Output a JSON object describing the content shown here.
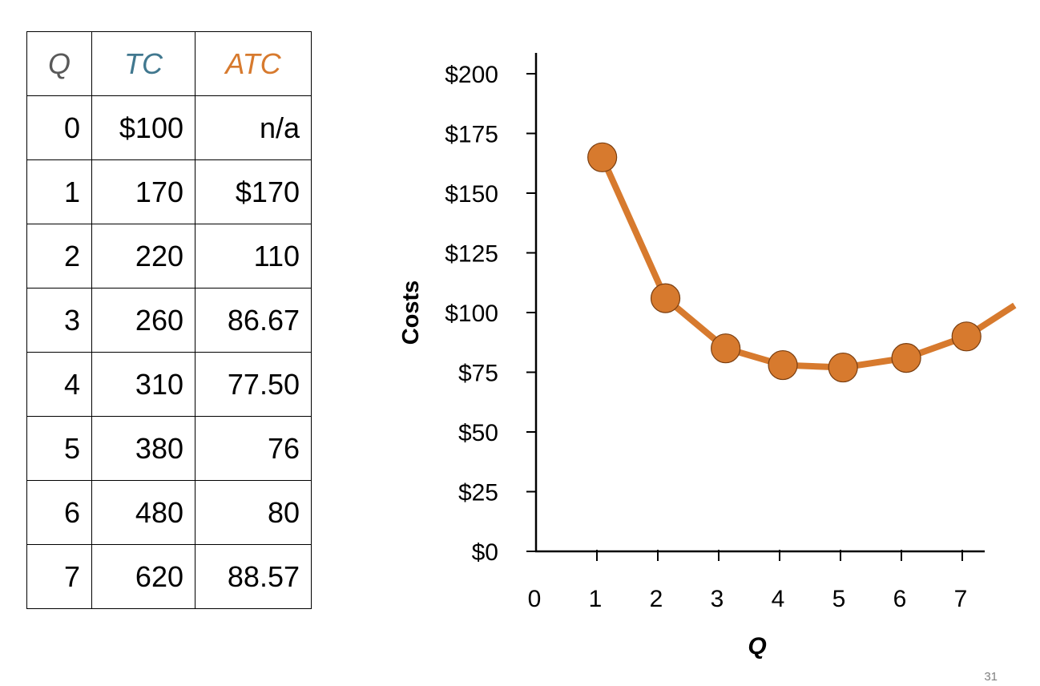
{
  "table": {
    "headers": [
      {
        "label": "Q",
        "color": "#595959"
      },
      {
        "label": "TC",
        "color": "#41788F"
      },
      {
        "label": "ATC",
        "color": "#D77A2E"
      }
    ],
    "rows": [
      [
        "0",
        "$100",
        "n/a"
      ],
      [
        "1",
        "170",
        "$170"
      ],
      [
        "2",
        "220",
        "110"
      ],
      [
        "3",
        "260",
        "86.67"
      ],
      [
        "4",
        "310",
        "77.50"
      ],
      [
        "5",
        "380",
        "76"
      ],
      [
        "6",
        "480",
        "80"
      ],
      [
        "7",
        "620",
        "88.57"
      ]
    ]
  },
  "chart_data": {
    "type": "line",
    "title": "",
    "xlabel": "Q",
    "ylabel": "Costs",
    "x_ticks": [
      "0",
      "1",
      "2",
      "3",
      "4",
      "5",
      "6",
      "7"
    ],
    "y_ticks": [
      "$0",
      "$25",
      "$50",
      "$75",
      "$100",
      "$125",
      "$150",
      "$175",
      "$200"
    ],
    "xlim": [
      0,
      7.4
    ],
    "ylim": [
      0,
      200
    ],
    "series": [
      {
        "color": "#D77A2E",
        "points": [
          {
            "x": 1.1,
            "y": 165
          },
          {
            "x": 2.15,
            "y": 106
          },
          {
            "x": 3.15,
            "y": 85
          },
          {
            "x": 4.1,
            "y": 78
          },
          {
            "x": 5.1,
            "y": 77
          },
          {
            "x": 6.15,
            "y": 81
          },
          {
            "x": 7.15,
            "y": 90
          }
        ],
        "trend_end": {
          "x": 7.95,
          "y": 103
        }
      }
    ],
    "grid": false,
    "legend": "none"
  },
  "slide_number": "31"
}
